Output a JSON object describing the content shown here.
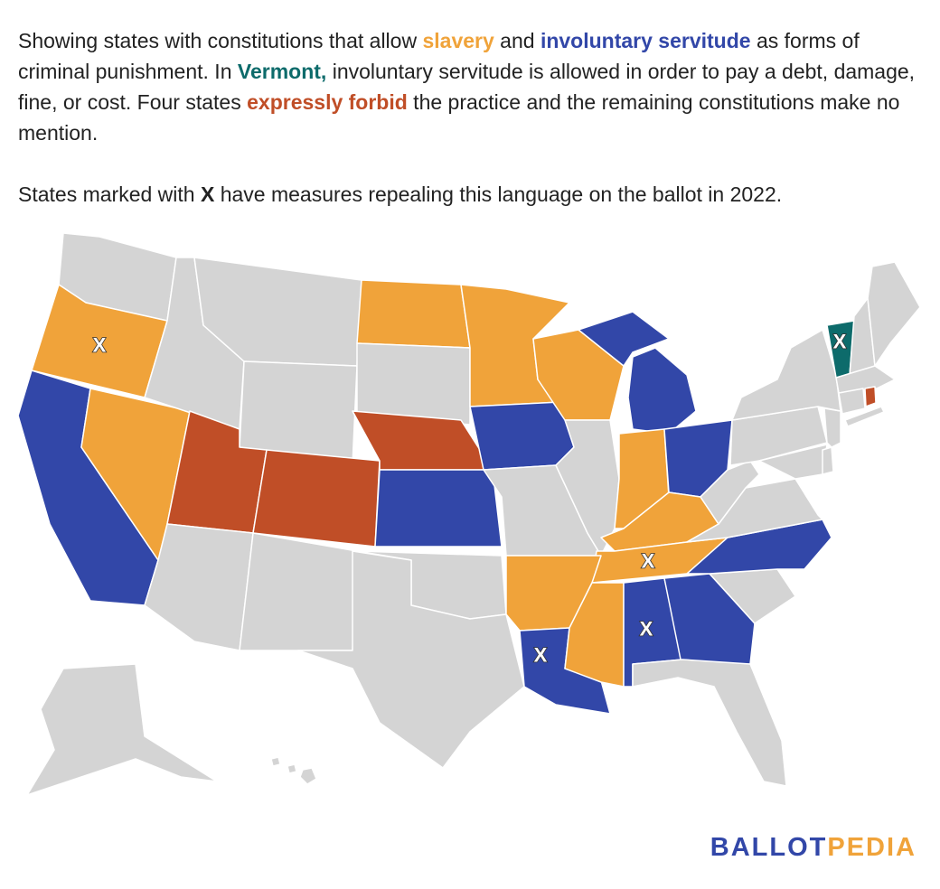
{
  "intro": {
    "p1": "Showing states with constitutions that allow ",
    "slavery": "slavery",
    "p2": " and ",
    "servitude": "involuntary servitude",
    "p3": " as forms of criminal punishment. In ",
    "vermont": "Vermont,",
    "p4": " involuntary servitude is allowed in order to pay a debt, damage, fine, or cost. Four states ",
    "forbid": "expressly forbid",
    "p5": " the practice and the remaining constitutions make no mention."
  },
  "note": {
    "before": "States marked with ",
    "mark": "X",
    "after": " have measures repealing this language on the ballot in 2022."
  },
  "colors": {
    "slavery": "#f0a33a",
    "servitude": "#3247a8",
    "vermont": "#0d6b6b",
    "forbid": "#c04e27",
    "none": "#d4d4d4"
  },
  "categories": {
    "slavery": [
      "Oregon",
      "Nevada",
      "North Dakota",
      "Minnesota",
      "Wisconsin",
      "Indiana",
      "Kentucky",
      "Tennessee",
      "Arkansas",
      "Mississippi"
    ],
    "servitude": [
      "California",
      "Kansas",
      "Iowa",
      "Michigan",
      "Ohio",
      "Louisiana",
      "Alabama",
      "Georgia",
      "North Carolina"
    ],
    "vermont": [
      "Vermont"
    ],
    "forbid": [
      "Utah",
      "Colorado",
      "Nebraska",
      "Rhode Island"
    ]
  },
  "ballot_2022": [
    "Oregon",
    "Tennessee",
    "Louisiana",
    "Alabama",
    "Vermont"
  ],
  "marker_label": "X",
  "logo": {
    "part1": "BALLOT",
    "part2": "PEDIA"
  }
}
